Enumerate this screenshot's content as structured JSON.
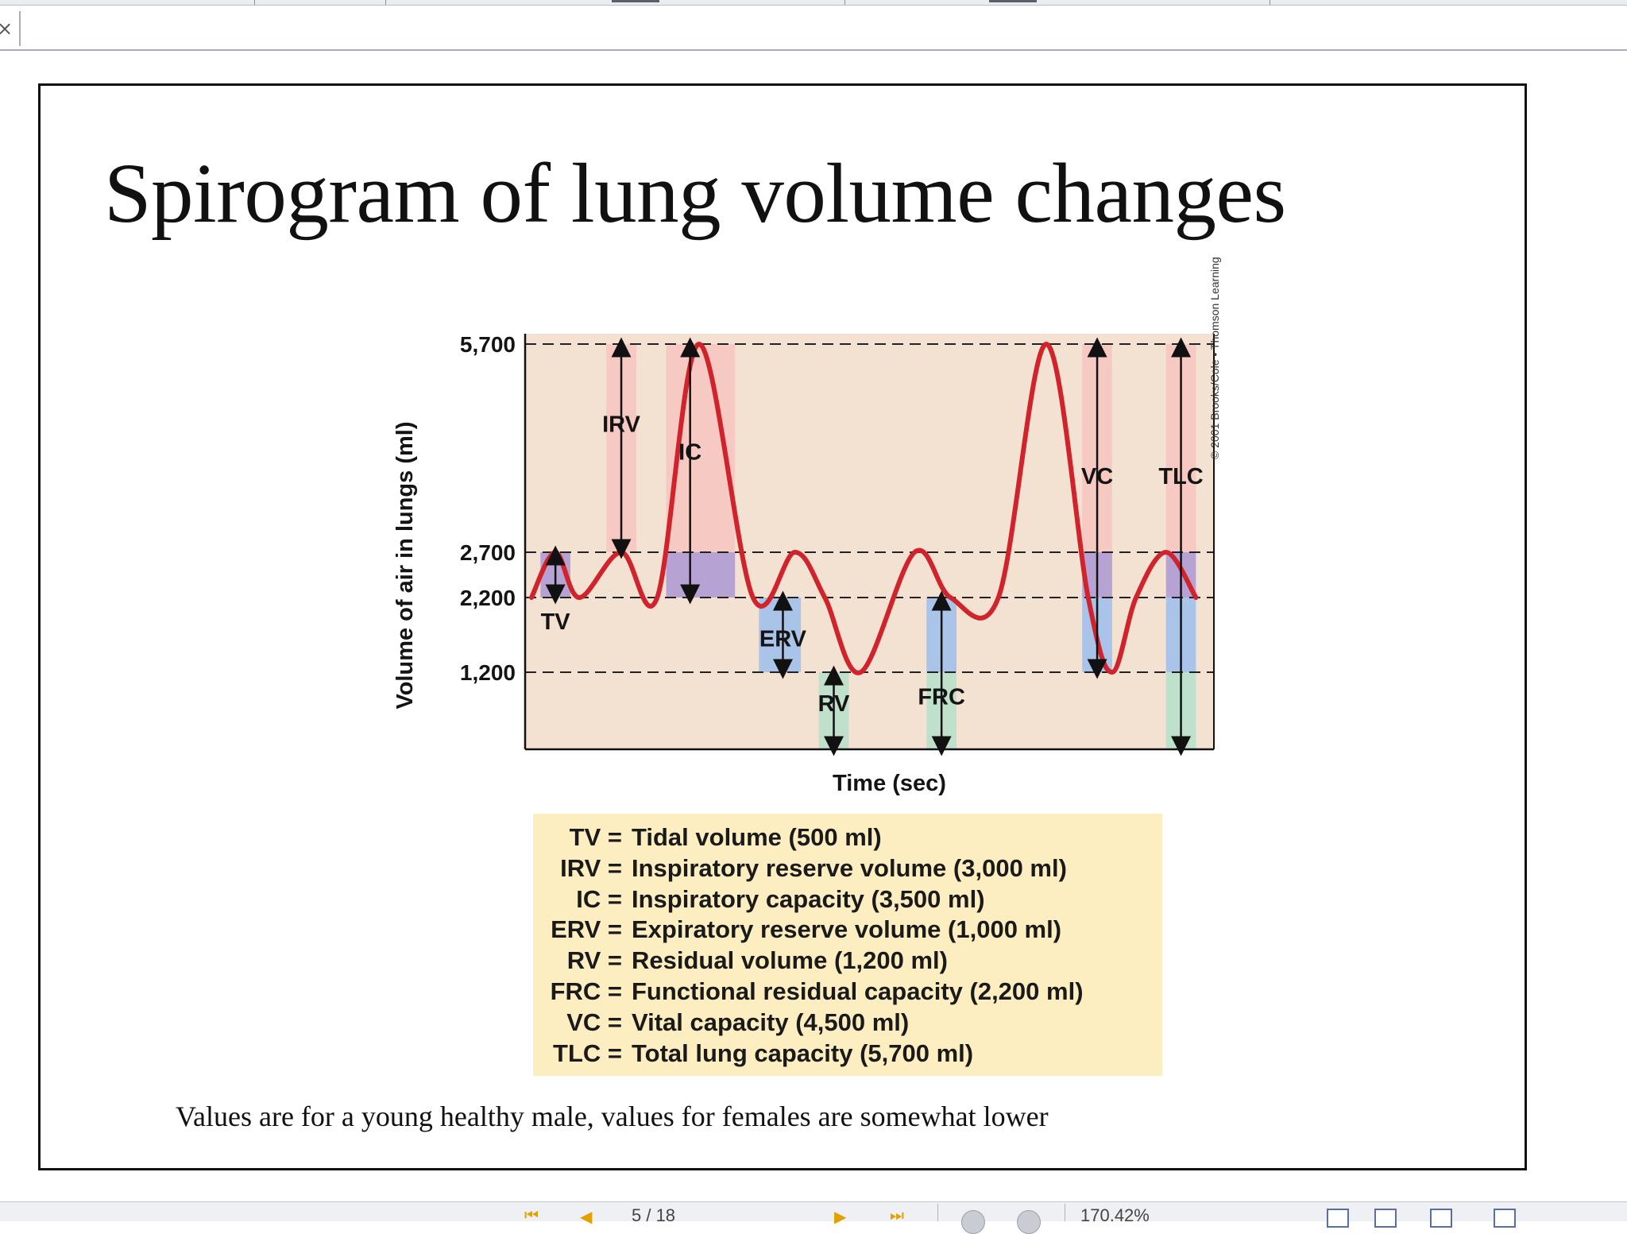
{
  "window": {
    "close_glyph": "×"
  },
  "slide": {
    "title": "Spirogram of lung volume changes",
    "caption": "Values are for a young healthy male, values for females are somewhat lower",
    "copyright": "© 2001 Brooks/Cole • Thomson Learning"
  },
  "chart_data": {
    "type": "line",
    "xlabel": "Time (sec)",
    "ylabel": "Volume of air in lungs (ml)",
    "yticks": [
      "5,700",
      "2,700",
      "2,200",
      "1,200"
    ],
    "ytick_values": [
      5700,
      2700,
      2200,
      1200
    ],
    "ylim": [
      0,
      5700
    ],
    "x_ticks_shown": false,
    "grid": "dashed lines at 5,700, 2,700, 2,200 and 1,200 ml",
    "series": [
      {
        "color": "#d0232c",
        "points": [
          [
            0,
            2200
          ],
          [
            4,
            2700
          ],
          [
            8,
            2200
          ],
          [
            15,
            2700
          ],
          [
            21,
            2200
          ],
          [
            28,
            5700
          ],
          [
            37,
            2200
          ],
          [
            44,
            2700
          ],
          [
            49,
            2200
          ],
          [
            55,
            1200
          ],
          [
            64,
            2700
          ],
          [
            70,
            2200
          ],
          [
            78,
            2200
          ],
          [
            86,
            5700
          ],
          [
            93,
            2200
          ],
          [
            97,
            1200
          ],
          [
            101,
            2200
          ],
          [
            106,
            2700
          ],
          [
            111,
            2200
          ]
        ]
      }
    ],
    "volume_labels": [
      {
        "label": "TV",
        "from": 2200,
        "to": 2700
      },
      {
        "label": "IRV",
        "from": 2700,
        "to": 5700
      },
      {
        "label": "IC",
        "from": 2200,
        "to": 5700
      },
      {
        "label": "ERV",
        "from": 1200,
        "to": 2200
      },
      {
        "label": "RV",
        "from": 0,
        "to": 1200
      },
      {
        "label": "FRC",
        "from": 0,
        "to": 2200
      },
      {
        "label": "VC",
        "from": 1200,
        "to": 5700
      },
      {
        "label": "TLC",
        "from": 0,
        "to": 5700
      }
    ],
    "band_colors": {
      "background": "#f3e1d2",
      "upper": "#f6c9c3",
      "tidal": "#b7a3d3",
      "expiratory": "#a9c4e8",
      "residual": "#bfe1cc",
      "line": "#d0232c"
    }
  },
  "legend": [
    {
      "abbr": "TV =",
      "desc": "Tidal volume (500 ml)"
    },
    {
      "abbr": "IRV =",
      "desc": "Inspiratory reserve volume (3,000 ml)"
    },
    {
      "abbr": "IC =",
      "desc": "Inspiratory capacity (3,500 ml)"
    },
    {
      "abbr": "ERV =",
      "desc": "Expiratory reserve volume (1,000 ml)"
    },
    {
      "abbr": "RV =",
      "desc": "Residual volume (1,200 ml)"
    },
    {
      "abbr": "FRC =",
      "desc": "Functional residual capacity (2,200 ml)"
    },
    {
      "abbr": "VC =",
      "desc": "Vital capacity (4,500 ml)"
    },
    {
      "abbr": "TLC =",
      "desc": "Total lung capacity (5,700 ml)"
    }
  ],
  "statusbar": {
    "page": "5 / 18",
    "zoom": "170.42%"
  }
}
